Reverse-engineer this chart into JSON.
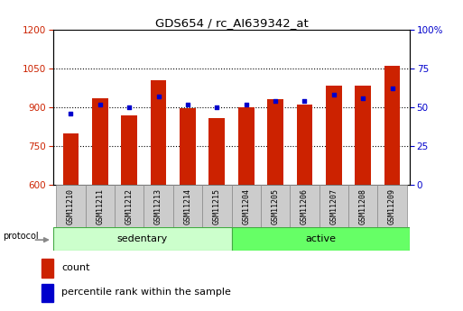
{
  "title": "GDS654 / rc_AI639342_at",
  "samples": [
    "GSM11210",
    "GSM11211",
    "GSM11212",
    "GSM11213",
    "GSM11214",
    "GSM11215",
    "GSM11204",
    "GSM11205",
    "GSM11206",
    "GSM11207",
    "GSM11208",
    "GSM11209"
  ],
  "counts": [
    800,
    935,
    870,
    1005,
    895,
    858,
    900,
    930,
    910,
    985,
    985,
    1060
  ],
  "percentiles": [
    46,
    52,
    50,
    57,
    52,
    50,
    52,
    54,
    54,
    58,
    56,
    62
  ],
  "groups": [
    "sedentary",
    "sedentary",
    "sedentary",
    "sedentary",
    "sedentary",
    "sedentary",
    "active",
    "active",
    "active",
    "active",
    "active",
    "active"
  ],
  "ylim_left": [
    600,
    1200
  ],
  "ylim_right": [
    0,
    100
  ],
  "yticks_left": [
    600,
    750,
    900,
    1050,
    1200
  ],
  "yticks_right": [
    0,
    25,
    50,
    75,
    100
  ],
  "bar_color": "#cc2200",
  "dot_color": "#0000cc",
  "bar_width": 0.55,
  "legend_count": "count",
  "legend_percentile": "percentile rank within the sample",
  "bg_color": "#ffffff",
  "tick_label_color_left": "#cc2200",
  "tick_label_color_right": "#0000cc",
  "base": 600,
  "group_sedentary_color": "#ccffcc",
  "group_active_color": "#66ff66",
  "group_border_color": "#44aa44",
  "label_box_color": "#cccccc",
  "label_box_border": "#888888"
}
